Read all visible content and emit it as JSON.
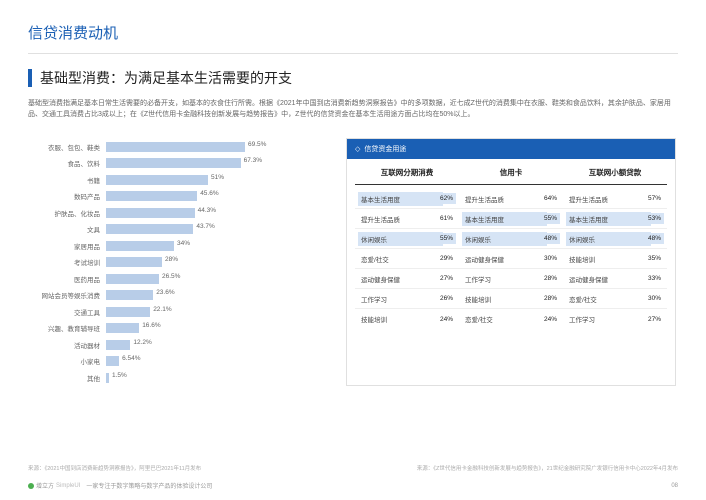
{
  "mainTitle": "信贷消费动机",
  "subtitle": "基础型消费：为满足基本生活需要的开支",
  "description": "基础型消费指满足基本日常生活需要的必备开支，如基本的衣食住行所需。根据《2021年中国到店消费新趋势洞察报告》中的多项数据，近七成Z世代的消费集中在衣服、鞋类和食品饮料，其余护肤品、家居用品、交通工具消费占比3成以上；在《Z世代信用卡金融科技创新发展与趋势报告》中，Z世代的信贷资金在基本生活用途方面占比均在50%以上。",
  "barChart": {
    "maxValue": 100,
    "barColor": "#b8cde8",
    "items": [
      {
        "label": "衣服、包包、鞋类",
        "value": 69.5
      },
      {
        "label": "食品、饮料",
        "value": 67.3
      },
      {
        "label": "书籍",
        "value": 51.0
      },
      {
        "label": "数码产品",
        "value": 45.6
      },
      {
        "label": "护肤品、化妆品",
        "value": 44.3
      },
      {
        "label": "文具",
        "value": 43.7
      },
      {
        "label": "家居用品",
        "value": 34.0
      },
      {
        "label": "考试培训",
        "value": 28.0
      },
      {
        "label": "医药用品",
        "value": 26.5
      },
      {
        "label": "网站会员等娱乐消费",
        "value": 23.6
      },
      {
        "label": "交通工具",
        "value": 22.1
      },
      {
        "label": "兴趣、教育辅导班",
        "value": 16.6
      },
      {
        "label": "活动器材",
        "value": 12.2
      },
      {
        "label": "小家电",
        "value": 6.54
      },
      {
        "label": "其他",
        "value": 1.5
      }
    ]
  },
  "tableTitle": "信贷资金用途",
  "tableColumns": [
    "互联网分期消费",
    "信用卡",
    "互联网小额贷款"
  ],
  "tableRows": [
    {
      "c0": {
        "l": "基本生活用度",
        "v": "62%",
        "h": true
      },
      "c1": {
        "l": "提升生活品质",
        "v": "64%"
      },
      "c2": {
        "l": "提升生活品质",
        "v": "57%"
      }
    },
    {
      "c0": {
        "l": "提升生活品质",
        "v": "61%"
      },
      "c1": {
        "l": "基本生活用度",
        "v": "55%",
        "h": true
      },
      "c2": {
        "l": "基本生活用度",
        "v": "53%",
        "h": true
      }
    },
    {
      "c0": {
        "l": "休闲娱乐",
        "v": "55%",
        "h": true
      },
      "c1": {
        "l": "休闲娱乐",
        "v": "48%",
        "h": true
      },
      "c2": {
        "l": "休闲娱乐",
        "v": "48%",
        "h": true
      }
    },
    {
      "c0": {
        "l": "恋爱/社交",
        "v": "29%"
      },
      "c1": {
        "l": "运动健身保健",
        "v": "30%"
      },
      "c2": {
        "l": "技能培训",
        "v": "35%"
      }
    },
    {
      "c0": {
        "l": "运动健身保健",
        "v": "27%"
      },
      "c1": {
        "l": "工作学习",
        "v": "28%"
      },
      "c2": {
        "l": "运动健身保健",
        "v": "33%"
      }
    },
    {
      "c0": {
        "l": "工作学习",
        "v": "26%"
      },
      "c1": {
        "l": "技能培训",
        "v": "28%"
      },
      "c2": {
        "l": "恋爱/社交",
        "v": "30%"
      }
    },
    {
      "c0": {
        "l": "技能培训",
        "v": "24%"
      },
      "c1": {
        "l": "恋爱/社交",
        "v": "24%"
      },
      "c2": {
        "l": "工作学习",
        "v": "27%"
      }
    }
  ],
  "sourceLeft": "来源：《2021中国到店消费新趋势洞察报告》，阿里巴巴2021年11月发布",
  "sourceRight": "来源：《Z世代信用卡金融科技创新发展与趋势报告》，21世纪金融研究院广发银行信用卡中心2022年4月发布",
  "footerBrand": "增立方",
  "footerBrandEn": "SimpleUI",
  "footerText": "一家专注于数字策略与数字产品的体验设计公司",
  "pageNum": "08"
}
